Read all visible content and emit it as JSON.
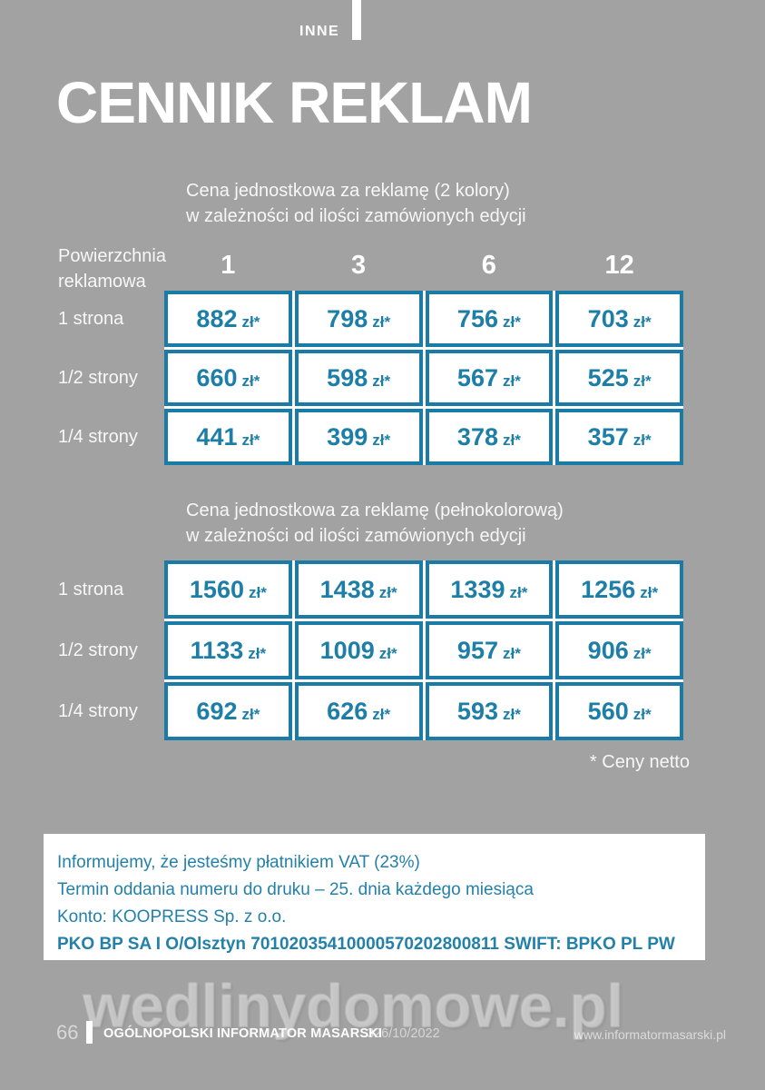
{
  "page": {
    "category_label": "INNE",
    "title": "CENNIK REKLAM",
    "footnote": "* Ceny netto"
  },
  "colors": {
    "background": "#a2a2a2",
    "accent_teal": "#1d7ea8",
    "white": "#ffffff"
  },
  "tables": [
    {
      "heading_line1": "Cena jednostkowa za reklamę (2 kolory)",
      "heading_line2": "w zależności od ilości zamówionych edycji",
      "corner_label_line1": "Powierzchnia",
      "corner_label_line2": "reklamowa",
      "columns": [
        "1",
        "3",
        "6",
        "12"
      ],
      "unit": "zł*",
      "rows": [
        {
          "label": "1 strona",
          "values": [
            "882",
            "798",
            "756",
            "703"
          ]
        },
        {
          "label": "1/2 strony",
          "values": [
            "660",
            "598",
            "567",
            "525"
          ]
        },
        {
          "label": "1/4 strony",
          "values": [
            "441",
            "399",
            "378",
            "357"
          ]
        }
      ]
    },
    {
      "heading_line1": "Cena jednostkowa za reklamę (pełnokolorową)",
      "heading_line2": "w zależności od ilości zamówionych edycji",
      "unit": "zł*",
      "rows": [
        {
          "label": "1 strona",
          "values": [
            "1560",
            "1438",
            "1339",
            "1256"
          ]
        },
        {
          "label": "1/2 strony",
          "values": [
            "1133",
            "1009",
            "957",
            "906"
          ]
        },
        {
          "label": "1/4 strony",
          "values": [
            "692",
            "626",
            "593",
            "560"
          ]
        }
      ]
    }
  ],
  "info_box": {
    "line1": "Informujemy, że jesteśmy płatnikiem VAT (23%)",
    "line2": "Termin oddania numeru do druku – 25. dnia każdego miesiąca",
    "line3": "Konto: KOOPRESS Sp. z o.o.",
    "line4": "PKO BP SA I O/Olsztyn 70102035410000570202800811 SWIFT: BPKO PL PW"
  },
  "watermark": "wedlinydomowe.pl",
  "footer": {
    "page_number": "66",
    "publication": "OGÓLNOPOLSKI INFORMATOR MASARSKI",
    "issue": "326/10/2022",
    "website": "www.informatormasarski.pl"
  }
}
